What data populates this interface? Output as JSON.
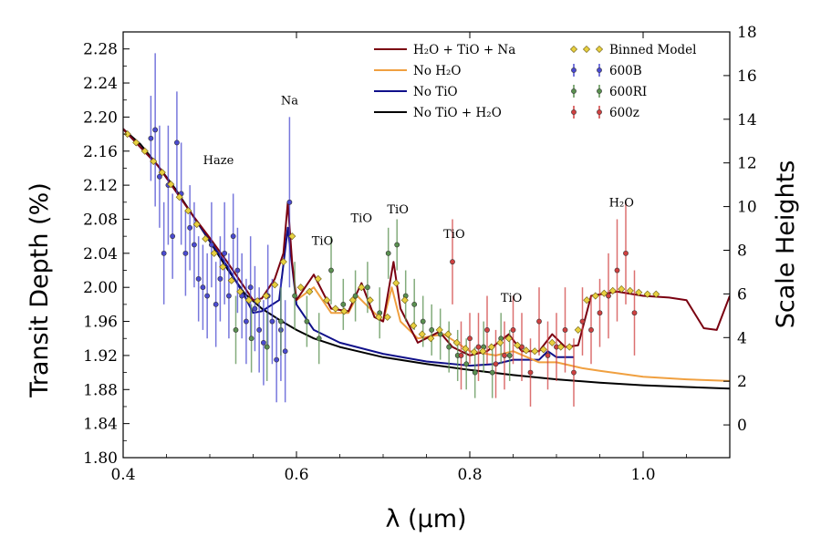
{
  "chart_data": {
    "type": "line",
    "title": "",
    "xlabel": "λ (μm)",
    "ylabel": "Transit Depth (%)",
    "ylabel_right": "Scale Heights",
    "xlim": [
      0.4,
      1.1
    ],
    "ylim": [
      1.8,
      2.3
    ],
    "ylim_right": [
      -1.5,
      18.0
    ],
    "x_ticks": [
      0.4,
      0.6,
      0.8,
      1.0
    ],
    "x_tick_labels": [
      "0.4",
      "0.6",
      "0.8",
      "1.0"
    ],
    "y_ticks": [
      1.8,
      1.84,
      1.88,
      1.92,
      1.96,
      2.0,
      2.04,
      2.08,
      2.12,
      2.16,
      2.2,
      2.24,
      2.28
    ],
    "y_tick_labels": [
      "1.80",
      "1.84",
      "1.88",
      "1.92",
      "1.96",
      "2.00",
      "2.04",
      "2.08",
      "2.12",
      "2.16",
      "2.20",
      "2.24",
      "2.28"
    ],
    "y_right_ticks": [
      0,
      2,
      4,
      6,
      8,
      10,
      12,
      14,
      16,
      18
    ],
    "y_right_tick_labels": [
      "0",
      "2",
      "4",
      "6",
      "8",
      "10",
      "12",
      "14",
      "16",
      "18"
    ],
    "grid": false,
    "legend_placement": "top-right",
    "legend": [
      {
        "label": "H₂O + TiO + Na",
        "kind": "line",
        "color": "#7a0010"
      },
      {
        "label": "No H₂O",
        "kind": "line",
        "color": "#f0a040"
      },
      {
        "label": "No TiO",
        "kind": "line",
        "color": "#10108a"
      },
      {
        "label": "No TiO + H₂O",
        "kind": "line",
        "color": "#000000"
      },
      {
        "label": "Binned Model",
        "kind": "diamond",
        "color": "#e8d040"
      },
      {
        "label": "600B",
        "kind": "errorbar",
        "color": "#4a4ad0"
      },
      {
        "label": "600RI",
        "kind": "errorbar",
        "color": "#5a9050"
      },
      {
        "label": "600z",
        "kind": "errorbar",
        "color": "#d04040"
      }
    ],
    "annotations": [
      {
        "text": "Na",
        "x": 0.592,
        "y": 2.215
      },
      {
        "text": "Haze",
        "x": 0.51,
        "y": 2.145
      },
      {
        "text": "TiO",
        "x": 0.63,
        "y": 2.05
      },
      {
        "text": "TiO",
        "x": 0.675,
        "y": 2.077
      },
      {
        "text": "TiO",
        "x": 0.717,
        "y": 2.087
      },
      {
        "text": "TiO",
        "x": 0.782,
        "y": 2.058
      },
      {
        "text": "TiO",
        "x": 0.848,
        "y": 1.983
      },
      {
        "text": "H₂O",
        "x": 0.975,
        "y": 2.095
      }
    ],
    "series": [
      {
        "name": "No TiO + H₂O",
        "color": "#000000",
        "x": [
          0.4,
          0.42,
          0.44,
          0.46,
          0.48,
          0.5,
          0.52,
          0.54,
          0.56,
          0.58,
          0.6,
          0.62,
          0.65,
          0.7,
          0.75,
          0.8,
          0.85,
          0.9,
          0.95,
          1.0,
          1.05,
          1.1
        ],
        "y": [
          2.186,
          2.168,
          2.143,
          2.116,
          2.085,
          2.054,
          2.022,
          1.993,
          1.975,
          1.962,
          1.95,
          1.94,
          1.93,
          1.918,
          1.91,
          1.903,
          1.897,
          1.892,
          1.888,
          1.885,
          1.883,
          1.881
        ]
      },
      {
        "name": "No TiO",
        "color": "#10108a",
        "x": [
          0.4,
          0.44,
          0.48,
          0.5,
          0.52,
          0.54,
          0.55,
          0.56,
          0.58,
          0.59,
          0.6,
          0.62,
          0.65,
          0.7,
          0.75,
          0.8,
          0.83,
          0.85,
          0.88,
          0.89,
          0.9,
          0.92
        ],
        "y": [
          2.186,
          2.143,
          2.085,
          2.055,
          2.025,
          1.99,
          1.97,
          1.972,
          1.985,
          2.07,
          1.98,
          1.95,
          1.935,
          1.922,
          1.913,
          1.908,
          1.91,
          1.915,
          1.915,
          1.925,
          1.918,
          1.918
        ]
      },
      {
        "name": "No H₂O",
        "color": "#f0a040",
        "x": [
          0.6,
          0.62,
          0.64,
          0.66,
          0.67,
          0.68,
          0.7,
          0.71,
          0.72,
          0.74,
          0.77,
          0.8,
          0.83,
          0.85,
          0.88,
          0.9,
          0.93,
          0.95,
          1.0,
          1.05,
          1.1
        ],
        "y": [
          1.985,
          2.0,
          1.97,
          1.97,
          1.99,
          1.98,
          1.96,
          2.0,
          1.96,
          1.94,
          1.945,
          1.925,
          1.92,
          1.925,
          1.912,
          1.912,
          1.905,
          1.902,
          1.895,
          1.892,
          1.89
        ]
      },
      {
        "name": "H₂O + TiO + Na",
        "color": "#7a0010",
        "x": [
          0.4,
          0.44,
          0.48,
          0.5,
          0.52,
          0.54,
          0.55,
          0.56,
          0.575,
          0.585,
          0.59,
          0.595,
          0.6,
          0.62,
          0.64,
          0.66,
          0.675,
          0.69,
          0.7,
          0.712,
          0.72,
          0.74,
          0.765,
          0.78,
          0.8,
          0.82,
          0.845,
          0.86,
          0.88,
          0.895,
          0.91,
          0.925,
          0.94,
          0.97,
          1.0,
          1.03,
          1.05,
          1.07,
          1.085,
          1.1
        ],
        "y": [
          2.186,
          2.143,
          2.085,
          2.058,
          2.03,
          2.0,
          1.985,
          1.987,
          2.01,
          2.04,
          2.1,
          2.03,
          1.985,
          2.015,
          1.975,
          1.972,
          2.005,
          1.965,
          1.96,
          2.03,
          1.975,
          1.935,
          1.948,
          1.93,
          1.92,
          1.925,
          1.945,
          1.925,
          1.925,
          1.945,
          1.93,
          1.932,
          1.99,
          1.995,
          1.99,
          1.988,
          1.985,
          1.952,
          1.95,
          1.99
        ]
      }
    ],
    "binned_model": {
      "name": "Binned Model",
      "color": "#e8d040",
      "x": [
        0.405,
        0.415,
        0.425,
        0.435,
        0.445,
        0.455,
        0.465,
        0.475,
        0.485,
        0.495,
        0.505,
        0.515,
        0.525,
        0.535,
        0.545,
        0.555,
        0.565,
        0.575,
        0.585,
        0.595,
        0.605,
        0.615,
        0.625,
        0.635,
        0.645,
        0.655,
        0.665,
        0.675,
        0.685,
        0.695,
        0.705,
        0.715,
        0.725,
        0.735,
        0.745,
        0.755,
        0.765,
        0.775,
        0.785,
        0.795,
        0.805,
        0.815,
        0.825,
        0.835,
        0.845,
        0.855,
        0.865,
        0.875,
        0.885,
        0.895,
        0.905,
        0.915,
        0.925,
        0.935,
        0.945,
        0.955,
        0.965,
        0.975,
        0.985,
        0.995,
        1.005,
        1.015
      ],
      "y": [
        2.18,
        2.17,
        2.16,
        2.148,
        2.135,
        2.121,
        2.106,
        2.09,
        2.074,
        2.057,
        2.04,
        2.024,
        2.008,
        1.995,
        1.985,
        1.984,
        1.99,
        2.003,
        2.03,
        2.06,
        2.0,
        1.995,
        2.01,
        1.985,
        1.975,
        1.972,
        1.985,
        2.0,
        1.985,
        1.965,
        1.965,
        2.005,
        1.985,
        1.955,
        1.945,
        1.94,
        1.95,
        1.945,
        1.935,
        1.928,
        1.924,
        1.925,
        1.93,
        1.935,
        1.94,
        1.932,
        1.926,
        1.925,
        1.927,
        1.935,
        1.93,
        1.93,
        1.95,
        1.985,
        1.99,
        1.993,
        1.996,
        1.998,
        1.996,
        1.994,
        1.992,
        1.992
      ]
    },
    "data_series": [
      {
        "name": "600B",
        "color": "#4a4ad0",
        "x": [
          0.432,
          0.437,
          0.442,
          0.447,
          0.452,
          0.457,
          0.462,
          0.467,
          0.472,
          0.477,
          0.482,
          0.487,
          0.492,
          0.497,
          0.502,
          0.507,
          0.512,
          0.517,
          0.522,
          0.527,
          0.532,
          0.537,
          0.542,
          0.547,
          0.552,
          0.557,
          0.562,
          0.567,
          0.572,
          0.577,
          0.582,
          0.587,
          0.592
        ],
        "y": [
          2.175,
          2.185,
          2.13,
          2.04,
          2.12,
          2.06,
          2.17,
          2.11,
          2.04,
          2.07,
          2.05,
          2.01,
          2.0,
          1.99,
          2.05,
          1.98,
          2.01,
          2.04,
          1.99,
          2.06,
          2.02,
          1.99,
          1.96,
          2.0,
          1.975,
          1.95,
          1.935,
          1.99,
          1.96,
          1.915,
          1.95,
          1.925,
          2.1
        ],
        "err": [
          0.05,
          0.09,
          0.06,
          0.06,
          0.07,
          0.05,
          0.06,
          0.06,
          0.05,
          0.05,
          0.05,
          0.05,
          0.05,
          0.05,
          0.05,
          0.05,
          0.05,
          0.06,
          0.05,
          0.05,
          0.05,
          0.05,
          0.05,
          0.06,
          0.05,
          0.05,
          0.05,
          0.06,
          0.05,
          0.05,
          0.06,
          0.06,
          0.1
        ]
      },
      {
        "name": "600RI",
        "color": "#5a9050",
        "x": [
          0.53,
          0.548,
          0.566,
          0.582,
          0.598,
          0.612,
          0.626,
          0.64,
          0.654,
          0.668,
          0.682,
          0.696,
          0.706,
          0.716,
          0.726,
          0.736,
          0.746,
          0.756,
          0.766,
          0.776,
          0.786,
          0.796,
          0.806,
          0.816,
          0.826,
          0.836,
          0.846
        ],
        "y": [
          1.95,
          1.94,
          1.93,
          1.96,
          1.99,
          1.96,
          1.94,
          2.02,
          1.98,
          1.99,
          2.0,
          1.97,
          2.04,
          2.05,
          1.99,
          1.98,
          1.96,
          1.95,
          1.945,
          1.93,
          1.92,
          1.91,
          1.9,
          1.93,
          1.9,
          1.94,
          1.92
        ],
        "err": [
          0.04,
          0.04,
          0.04,
          0.04,
          0.04,
          0.03,
          0.03,
          0.04,
          0.03,
          0.03,
          0.03,
          0.03,
          0.03,
          0.03,
          0.03,
          0.03,
          0.03,
          0.03,
          0.03,
          0.03,
          0.03,
          0.03,
          0.03,
          0.03,
          0.03,
          0.03,
          0.03
        ]
      },
      {
        "name": "600z",
        "color": "#d04040",
        "x": [
          0.78,
          0.79,
          0.8,
          0.81,
          0.82,
          0.83,
          0.84,
          0.85,
          0.86,
          0.87,
          0.88,
          0.89,
          0.9,
          0.91,
          0.92,
          0.93,
          0.94,
          0.95,
          0.96,
          0.97,
          0.98,
          0.99
        ],
        "y": [
          2.03,
          1.92,
          1.94,
          1.93,
          1.95,
          1.91,
          1.92,
          1.95,
          1.93,
          1.9,
          1.96,
          1.92,
          1.93,
          1.95,
          1.9,
          1.96,
          1.95,
          1.97,
          1.99,
          2.02,
          2.04,
          1.97
        ],
        "err": [
          0.05,
          0.04,
          0.03,
          0.04,
          0.04,
          0.04,
          0.04,
          0.04,
          0.04,
          0.04,
          0.04,
          0.04,
          0.04,
          0.05,
          0.04,
          0.04,
          0.04,
          0.04,
          0.05,
          0.06,
          0.06,
          0.05
        ]
      }
    ]
  }
}
